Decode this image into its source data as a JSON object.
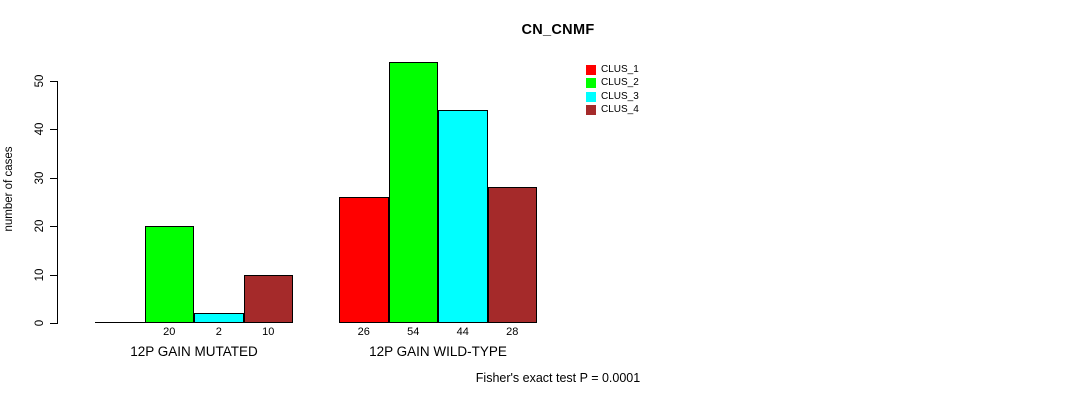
{
  "chart_data": {
    "type": "bar",
    "title": "CN_CNMF",
    "ylabel": "number of cases",
    "xlabel": "",
    "ylim": [
      0,
      50
    ],
    "yticks": [
      0,
      10,
      20,
      30,
      40,
      50
    ],
    "grid": false,
    "legend_position": "top-right-of-plot",
    "categories": [
      "12P GAIN MUTATED",
      "12P GAIN WILD-TYPE"
    ],
    "series": [
      {
        "name": "CLUS_1",
        "color": "#FF0000",
        "values": [
          0,
          26
        ]
      },
      {
        "name": "CLUS_2",
        "color": "#00FF00",
        "values": [
          20,
          54
        ]
      },
      {
        "name": "CLUS_3",
        "color": "#00FFFF",
        "values": [
          2,
          44
        ]
      },
      {
        "name": "CLUS_4",
        "color": "#A52A2A",
        "values": [
          10,
          28
        ]
      }
    ],
    "bar_value_labels": [
      "20",
      "2",
      "10",
      "26",
      "54",
      "44",
      "28"
    ],
    "zero_value_label_hidden": true,
    "annotation": "Fisher's exact test P = 0.0001",
    "axis_color": "#000000",
    "background_color": "#FFFFFF"
  }
}
